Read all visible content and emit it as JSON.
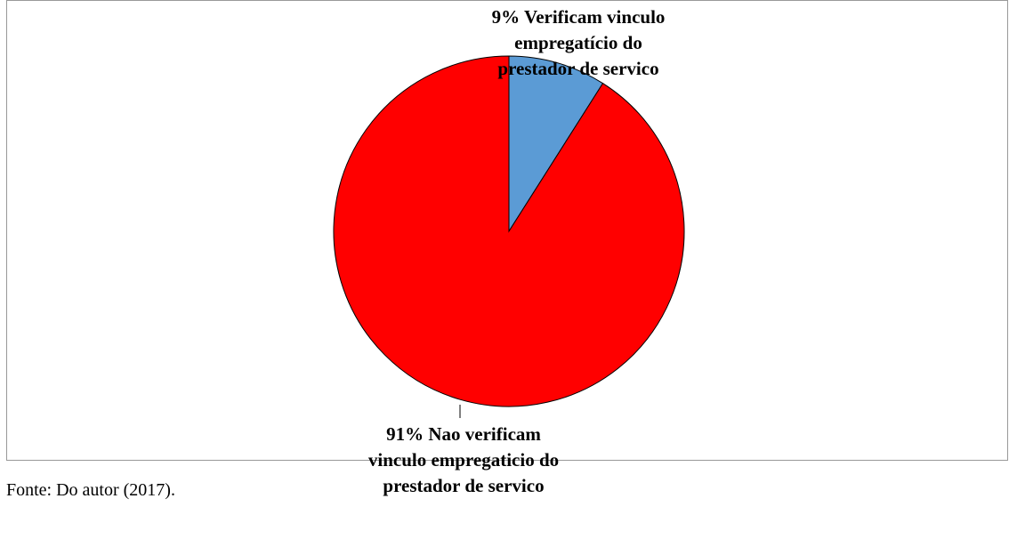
{
  "chart_data": {
    "type": "pie",
    "categories": [
      "Verificam vinculo empregatício do prestador de servico",
      "Nao verificam vinculo empregaticio do prestador de servico"
    ],
    "values": [
      9,
      91
    ],
    "value_labels": [
      "9%",
      "91%"
    ],
    "colors": [
      "#5b9bd5",
      "#ff0000"
    ]
  },
  "source": "Fonte: Do autor (2017)."
}
